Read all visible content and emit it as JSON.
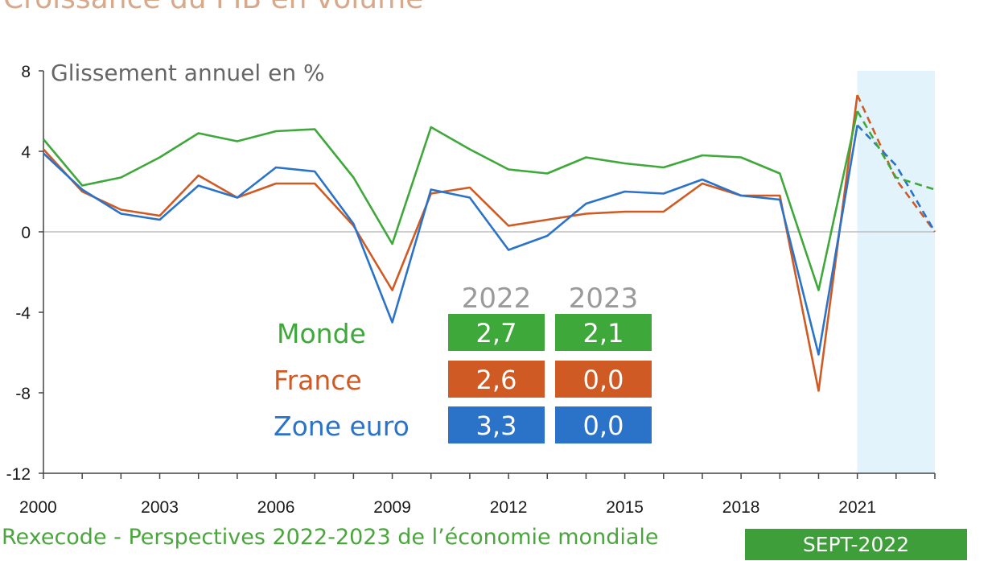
{
  "title": "Croissance du PIB en volume",
  "source": "Rexecode - Perspectives 2022-2023 de l’économie mondiale",
  "badge": "SEPT-2022",
  "colors": {
    "monde": "#3ea83a",
    "france": "#cf5a23",
    "zone_euro": "#2a73c9",
    "forecast_band": "#e2f3fb",
    "badge": "#3e9e3a"
  },
  "table": {
    "headers": [
      "2022",
      "2023"
    ],
    "rows": [
      {
        "label": "Monde",
        "values": [
          "2,7",
          "2,1"
        ]
      },
      {
        "label": "France",
        "values": [
          "2,6",
          "0,0"
        ]
      },
      {
        "label": "Zone euro",
        "values": [
          "3,3",
          "0,0"
        ]
      }
    ]
  },
  "chart_data": {
    "type": "line",
    "ylabel": "Glissement annuel en %",
    "ylim": [
      -12,
      8
    ],
    "yticks": [
      8,
      4,
      0,
      -4,
      -8,
      -12
    ],
    "yticks_labels": [
      "8",
      "4",
      "0",
      "-4",
      "-8",
      "-12"
    ],
    "xlim": [
      2000,
      2023
    ],
    "xticks": [
      2000,
      2003,
      2006,
      2009,
      2012,
      2015,
      2018,
      2021
    ],
    "xticks_labels": [
      "2000",
      "2003",
      "2006",
      "2009",
      "2012",
      "2015",
      "2018",
      "2021"
    ],
    "forecast_start": 2021,
    "x": [
      2000,
      2001,
      2002,
      2003,
      2004,
      2005,
      2006,
      2007,
      2008,
      2009,
      2010,
      2011,
      2012,
      2013,
      2014,
      2015,
      2016,
      2017,
      2018,
      2019,
      2020,
      2021,
      2022,
      2023
    ],
    "series": [
      {
        "name": "Monde",
        "values": [
          4.6,
          2.3,
          2.7,
          3.7,
          4.9,
          4.5,
          5.0,
          5.1,
          2.7,
          -0.6,
          5.2,
          4.1,
          3.1,
          2.9,
          3.7,
          3.4,
          3.2,
          3.8,
          3.7,
          2.9,
          -2.9,
          6.0,
          2.7,
          2.1
        ]
      },
      {
        "name": "France",
        "values": [
          4.1,
          2.0,
          1.1,
          0.8,
          2.8,
          1.7,
          2.4,
          2.4,
          0.3,
          -2.9,
          1.9,
          2.2,
          0.3,
          0.6,
          0.9,
          1.0,
          1.0,
          2.4,
          1.8,
          1.8,
          -7.9,
          6.8,
          2.6,
          0.0
        ]
      },
      {
        "name": "Zone euro",
        "values": [
          3.9,
          2.1,
          0.9,
          0.6,
          2.3,
          1.7,
          3.2,
          3.0,
          0.4,
          -4.5,
          2.1,
          1.7,
          -0.9,
          -0.2,
          1.4,
          2.0,
          1.9,
          2.6,
          1.8,
          1.6,
          -6.1,
          5.3,
          3.3,
          0.0
        ]
      }
    ]
  }
}
